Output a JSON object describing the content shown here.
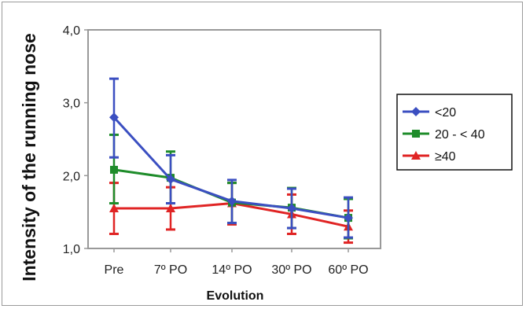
{
  "chart_data": {
    "type": "line",
    "title": "",
    "xlabel": "Evolution",
    "ylabel": "Intensity of the running nose",
    "ylim": [
      1.0,
      4.0
    ],
    "yticks": [
      "1,0",
      "2,0",
      "3,0",
      "4,0"
    ],
    "ytick_values": [
      1.0,
      2.0,
      3.0,
      4.0
    ],
    "categories": [
      "Pre",
      "7º PO",
      "14º PO",
      "30º PO",
      "60º PO"
    ],
    "grid": false,
    "legend": "right",
    "error_bars": true,
    "series": [
      {
        "name": "<20",
        "color": "#3b4fc1",
        "marker": "diamond",
        "values": [
          2.8,
          1.95,
          1.65,
          1.55,
          1.42
        ],
        "err_low": [
          2.25,
          1.62,
          1.35,
          1.28,
          1.15
        ],
        "err_high": [
          3.33,
          2.28,
          1.94,
          1.82,
          1.7
        ]
      },
      {
        "name": "20 - < 40",
        "color": "#1e8c2a",
        "marker": "square",
        "values": [
          2.08,
          1.97,
          1.63,
          1.56,
          1.42
        ],
        "err_low": [
          1.62,
          1.62,
          1.35,
          1.28,
          1.14
        ],
        "err_high": [
          2.56,
          2.33,
          1.9,
          1.83,
          1.68
        ]
      },
      {
        "name": "≥40",
        "color": "#e02424",
        "marker": "triangle",
        "values": [
          1.55,
          1.55,
          1.62,
          1.47,
          1.3
        ],
        "err_low": [
          1.2,
          1.26,
          1.33,
          1.2,
          1.08
        ],
        "err_high": [
          1.9,
          1.84,
          1.9,
          1.74,
          1.52
        ]
      }
    ]
  }
}
